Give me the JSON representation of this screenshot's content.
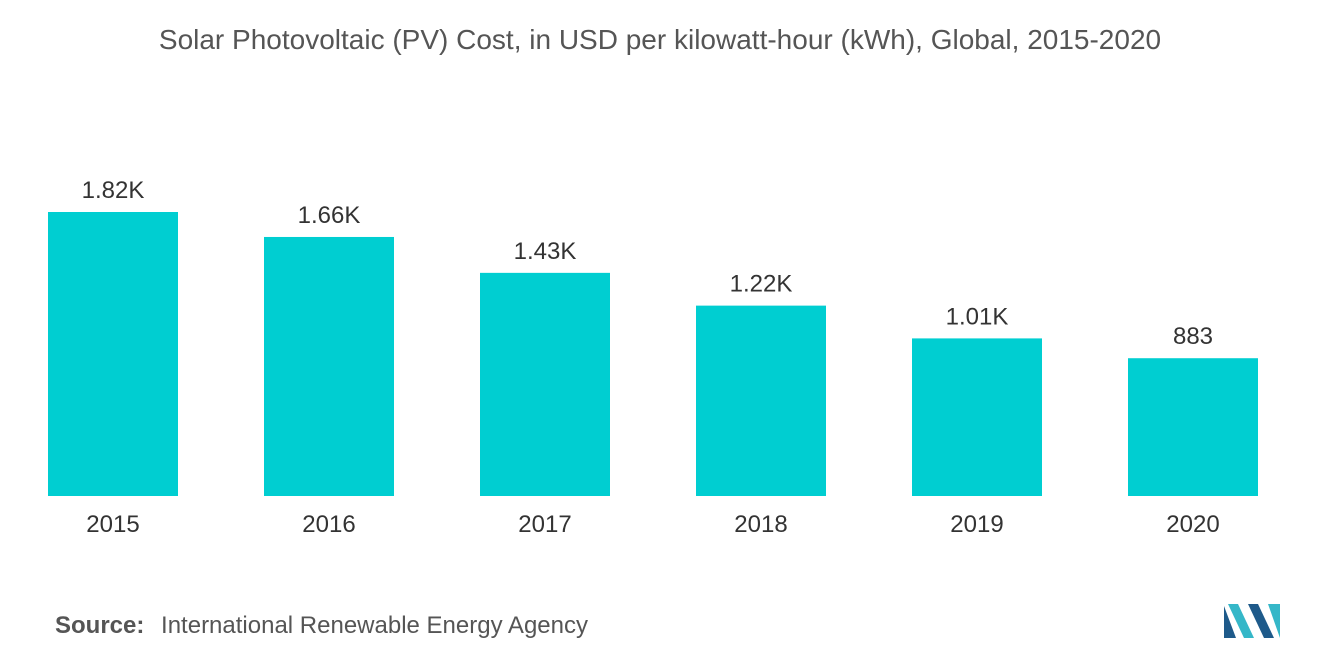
{
  "chart_data": {
    "type": "bar",
    "title": "Solar Photovoltaic (PV) Cost, in USD per kilowatt-hour (kWh), Global, 2015-2020",
    "categories": [
      "2015",
      "2016",
      "2017",
      "2018",
      "2019",
      "2020"
    ],
    "values": [
      1820,
      1660,
      1430,
      1220,
      1010,
      883
    ],
    "data_labels": [
      "1.82K",
      "1.66K",
      "1.43K",
      "1.22K",
      "1.01K",
      "883"
    ],
    "xlabel": "",
    "ylabel": "",
    "ylim": [
      0,
      1820
    ],
    "grid": false,
    "legend": "none",
    "bar_color": "#00CED1"
  },
  "footer": {
    "source_label": "Source:",
    "source_text": "International Renewable Energy Agency"
  },
  "logo": {
    "icon": "mordor-intelligence-logo-icon",
    "color_dark": "#1E5A8A",
    "color_light": "#35B7C8"
  }
}
